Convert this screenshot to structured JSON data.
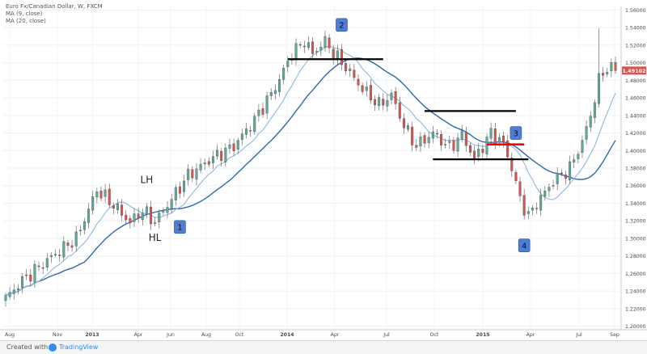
{
  "header": {
    "symbol_line": "Euro Fx/Canadian Dollar, W, FXCM",
    "ma9_label": "MA (9, close)",
    "ma20_label": "MA (20, close)"
  },
  "footer": {
    "created_with": "Created with",
    "brand": "TradingView",
    "logo_icon": "tradingview-logo-icon"
  },
  "colors": {
    "bull": "#5dab9a",
    "bear": "#d9534f",
    "ma9": "#8fb6df",
    "ma20": "#2f67b1",
    "annotation_box": "#4f7cd5",
    "price_tag": "#d9534f",
    "level_black": "#000000",
    "level_red": "#ff0000"
  },
  "chart_data": {
    "type": "candlestick",
    "timeframe": "W",
    "instrument": "Euro Fx/Canadian Dollar",
    "source": "FXCM",
    "x_tick_labels": [
      "Aug",
      "Nov",
      "2013",
      "Apr",
      "Jun",
      "Aug",
      "Oct",
      "2014",
      "Apr",
      "Jul",
      "Oct",
      "2015",
      "Apr",
      "Jul",
      "Sep"
    ],
    "y_tick_labels": [
      "1.56000",
      "1.54000",
      "1.52000",
      "1.50000",
      "1.48000",
      "1.46000",
      "1.44000",
      "1.42000",
      "1.40000",
      "1.38000",
      "1.36000",
      "1.34000",
      "1.32000",
      "1.30000",
      "1.28000",
      "1.26000",
      "1.24000",
      "1.22000",
      "1.20000"
    ],
    "ylim": [
      1.196,
      1.564
    ],
    "last_price_label": "1.49102",
    "last_price": 1.49102,
    "grid": true,
    "series": [
      {
        "name": "MA (9, close)",
        "role": "ma9"
      },
      {
        "name": "MA (20, close)",
        "role": "ma20"
      }
    ],
    "waypoints": [
      {
        "w": 0,
        "p": 1.232
      },
      {
        "w": 4,
        "p": 1.252
      },
      {
        "w": 10,
        "p": 1.275
      },
      {
        "w": 17,
        "p": 1.3
      },
      {
        "w": 22,
        "p": 1.355
      },
      {
        "w": 26,
        "p": 1.338
      },
      {
        "w": 30,
        "p": 1.318
      },
      {
        "w": 33,
        "p": 1.332
      },
      {
        "w": 36,
        "p": 1.318
      },
      {
        "w": 39,
        "p": 1.338
      },
      {
        "w": 44,
        "p": 1.372
      },
      {
        "w": 50,
        "p": 1.392
      },
      {
        "w": 55,
        "p": 1.405
      },
      {
        "w": 60,
        "p": 1.435
      },
      {
        "w": 65,
        "p": 1.472
      },
      {
        "w": 69,
        "p": 1.51
      },
      {
        "w": 72,
        "p": 1.525
      },
      {
        "w": 74,
        "p": 1.51
      },
      {
        "w": 77,
        "p": 1.525
      },
      {
        "w": 79,
        "p": 1.51
      },
      {
        "w": 82,
        "p": 1.495
      },
      {
        "w": 86,
        "p": 1.47
      },
      {
        "w": 90,
        "p": 1.452
      },
      {
        "w": 93,
        "p": 1.463
      },
      {
        "w": 96,
        "p": 1.428
      },
      {
        "w": 99,
        "p": 1.405
      },
      {
        "w": 103,
        "p": 1.42
      },
      {
        "w": 107,
        "p": 1.403
      },
      {
        "w": 110,
        "p": 1.418
      },
      {
        "w": 113,
        "p": 1.39
      },
      {
        "w": 117,
        "p": 1.42
      },
      {
        "w": 120,
        "p": 1.408
      },
      {
        "w": 122,
        "p": 1.38
      },
      {
        "w": 124,
        "p": 1.345
      },
      {
        "w": 126,
        "p": 1.325
      },
      {
        "w": 128,
        "p": 1.34
      },
      {
        "w": 132,
        "p": 1.365
      },
      {
        "w": 136,
        "p": 1.38
      },
      {
        "w": 139,
        "p": 1.41
      },
      {
        "w": 141,
        "p": 1.44
      },
      {
        "w": 143,
        "p": 1.48
      },
      {
        "w": 145,
        "p": 1.495
      },
      {
        "w": 147,
        "p": 1.491
      }
    ],
    "levels": [
      {
        "name": "resistance-peak",
        "price": 1.504,
        "w_from": 68,
        "w_to": 91,
        "color": "black"
      },
      {
        "name": "range-top",
        "price": 1.445,
        "w_from": 101,
        "w_to": 123,
        "color": "black"
      },
      {
        "name": "range-bottom",
        "price": 1.39,
        "w_from": 103,
        "w_to": 126,
        "color": "black"
      },
      {
        "name": "breakdown",
        "price": 1.407,
        "w_from": 116,
        "w_to": 125,
        "color": "red"
      }
    ],
    "annotations": [
      {
        "name": "box-1",
        "text": "1",
        "kind": "box",
        "w": 42,
        "p": 1.313
      },
      {
        "name": "box-2",
        "text": "2",
        "kind": "box",
        "w": 81,
        "p": 1.543
      },
      {
        "name": "box-3",
        "text": "3",
        "kind": "box",
        "w": 123,
        "p": 1.42
      },
      {
        "name": "box-4",
        "text": "4",
        "kind": "box",
        "w": 125,
        "p": 1.292
      },
      {
        "name": "label-lh",
        "text": "LH",
        "kind": "text",
        "w": 34,
        "p": 1.363
      },
      {
        "name": "label-hl",
        "text": "HL",
        "kind": "text",
        "w": 36,
        "p": 1.297
      }
    ]
  }
}
